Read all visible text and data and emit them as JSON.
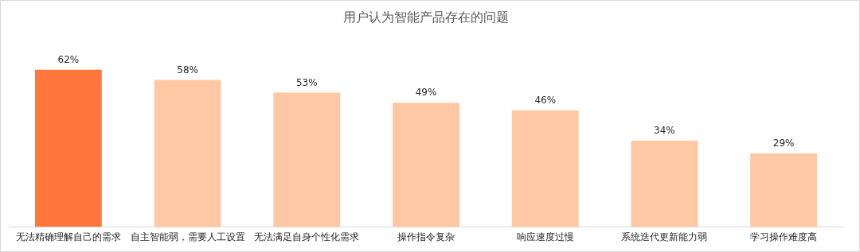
{
  "chart_data": {
    "type": "bar",
    "title": "用户认为智能产品存在的问题",
    "categories": [
      "无法精确理解自己的需求",
      "自主智能弱，需要人工设置",
      "无法满足自身个性化需求",
      "操作指令复杂",
      "响应速度过慢",
      "系统迭代更新能力弱",
      "学习操作难度高"
    ],
    "values": [
      62,
      58,
      53,
      49,
      46,
      34,
      29
    ],
    "value_labels": [
      "62%",
      "58%",
      "53%",
      "49%",
      "46%",
      "34%",
      "29%"
    ],
    "colors": [
      "#ff773d",
      "#ffc8a4",
      "#ffc8a4",
      "#ffc8a4",
      "#ffc8a4",
      "#ffc8a4",
      "#ffc8a4"
    ],
    "grid": false,
    "legend": false
  }
}
